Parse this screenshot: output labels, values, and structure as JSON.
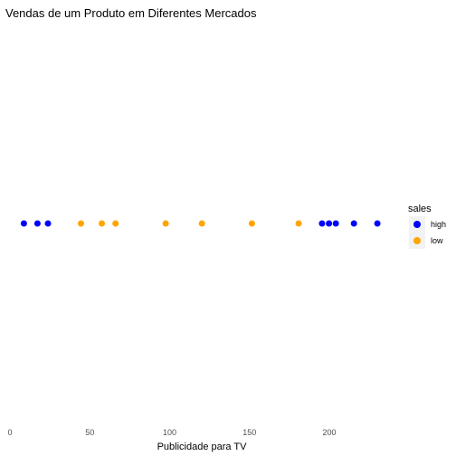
{
  "chart_data": {
    "type": "scatter",
    "title": "Vendas de um Produto em Diferentes Mercados",
    "xlabel": "Publicidade para TV",
    "ylabel": "",
    "xlim": [
      0,
      250
    ],
    "xticks": [
      0,
      50,
      100,
      150,
      200
    ],
    "grid": false,
    "legend": {
      "title": "sales",
      "position": "right"
    },
    "series": [
      {
        "name": "high",
        "color": "#0000ff",
        "x": [
          8.7,
          17.2,
          23.8,
          195.4,
          199.8,
          204.1,
          215.4,
          230.1
        ]
      },
      {
        "name": "low",
        "color": "#ffa500",
        "x": [
          44.5,
          57.5,
          66.1,
          97.5,
          120.2,
          151.5,
          180.8
        ]
      }
    ]
  }
}
